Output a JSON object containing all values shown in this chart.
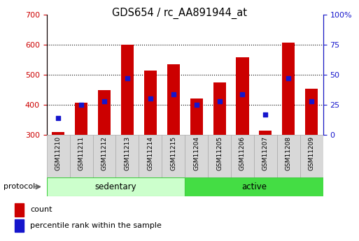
{
  "title": "GDS654 / rc_AA891944_at",
  "samples": [
    "GSM11210",
    "GSM11211",
    "GSM11212",
    "GSM11213",
    "GSM11214",
    "GSM11215",
    "GSM11204",
    "GSM11205",
    "GSM11206",
    "GSM11207",
    "GSM11208",
    "GSM11209"
  ],
  "bar_bottom": 300,
  "bar_tops": [
    310,
    408,
    450,
    600,
    513,
    535,
    420,
    475,
    558,
    315,
    607,
    453
  ],
  "percentile_ranks": [
    14,
    25,
    28,
    47,
    30,
    34,
    25,
    28,
    34,
    17,
    47,
    28
  ],
  "bar_color": "#cc0000",
  "blue_color": "#1515cc",
  "ylim_left": [
    300,
    700
  ],
  "ylim_right": [
    0,
    100
  ],
  "groups": [
    {
      "label": "sedentary",
      "start": 0,
      "end": 6,
      "color": "#ccffcc",
      "border": "#44cc44"
    },
    {
      "label": "active",
      "start": 6,
      "end": 12,
      "color": "#44dd44",
      "border": "#44cc44"
    }
  ],
  "group_label": "protocol",
  "tick_color_left": "#cc0000",
  "tick_color_right": "#1515cc",
  "yticks_left": [
    300,
    400,
    500,
    600,
    700
  ],
  "yticks_right": [
    0,
    25,
    50,
    75,
    100
  ],
  "grid_lines": [
    400,
    500,
    600
  ],
  "legend_count": "count",
  "legend_percentile": "percentile rank within the sample"
}
